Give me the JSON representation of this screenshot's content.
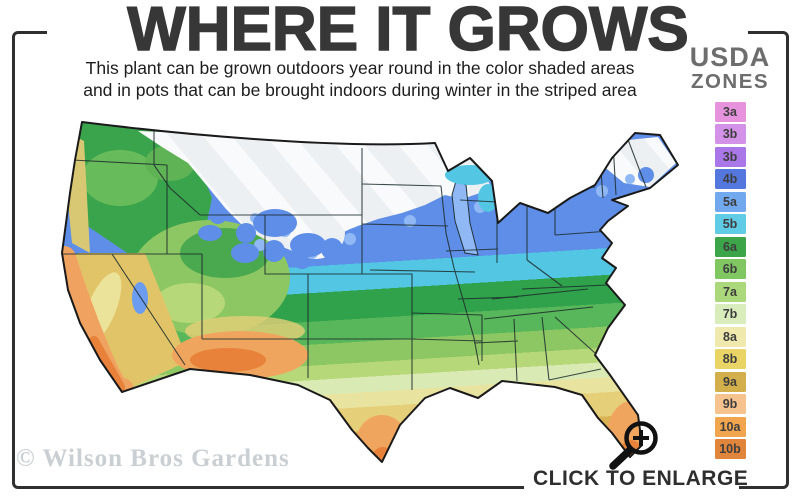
{
  "header": {
    "title": "WHERE IT GROWS",
    "subtitle_line1": "This plant can be grown outdoors year round in the color shaded areas",
    "subtitle_line2": "and in pots that can be brought indoors during winter in the striped area"
  },
  "legend": {
    "title_line1": "USDA",
    "title_line2": "ZONES",
    "zones": [
      {
        "label": "3a",
        "color": "#e792dd"
      },
      {
        "label": "3b",
        "color": "#d392e8"
      },
      {
        "label": "3b",
        "color": "#a977e8"
      },
      {
        "label": "4b",
        "color": "#5477de"
      },
      {
        "label": "5a",
        "color": "#72a9ee"
      },
      {
        "label": "5b",
        "color": "#5fcbe4"
      },
      {
        "label": "6a",
        "color": "#3ca449"
      },
      {
        "label": "6b",
        "color": "#80c661"
      },
      {
        "label": "7a",
        "color": "#abd87b"
      },
      {
        "label": "7b",
        "color": "#d9edbc"
      },
      {
        "label": "8a",
        "color": "#efe9ae"
      },
      {
        "label": "8b",
        "color": "#e9d566"
      },
      {
        "label": "9a",
        "color": "#d2af4b"
      },
      {
        "label": "9b",
        "color": "#f6c28d"
      },
      {
        "label": "10a",
        "color": "#f0a54e"
      },
      {
        "label": "10b",
        "color": "#e0853c"
      }
    ]
  },
  "map": {
    "watermark": "© Wilson Bros Gardens"
  },
  "footer": {
    "click_to_enlarge": "CLICK TO ENLARGE"
  }
}
